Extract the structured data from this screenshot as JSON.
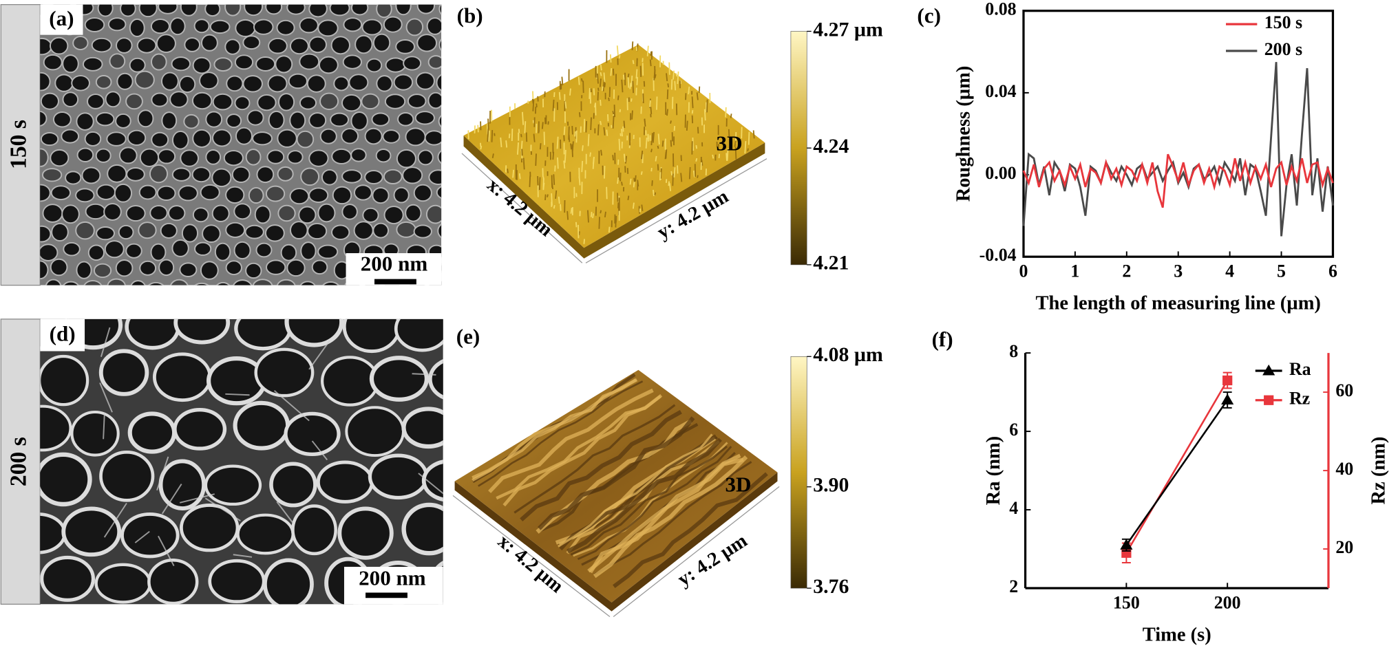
{
  "panels": [
    {
      "label": "(a)",
      "row_label": "150 s",
      "scale_bar": "200 nm"
    },
    {
      "label": "(b)",
      "x_axis": "x: 4.2 µm",
      "y_axis": "y: 4.2 µm",
      "tag": "3D",
      "zlim": [
        4.21,
        4.27
      ],
      "zticks": [
        {
          "value": 4.27,
          "label": "4.27 µm"
        },
        4.24,
        4.21
      ]
    },
    {
      "label": "(d)",
      "row_label": "200 s",
      "scale_bar": "200 nm"
    },
    {
      "label": "(e)",
      "x_axis": "x: 4.2 µm",
      "y_axis": "y: 4.2 µm",
      "tag": "3D",
      "zlim": [
        3.76,
        4.08
      ],
      "zticks": [
        {
          "value": 4.08,
          "label": "4.08 µm"
        },
        {
          "value": 3.9,
          "label": "3.90"
        },
        3.76
      ]
    }
  ],
  "chart_data": [
    {
      "type": "line",
      "panel_label": "(c)",
      "xlabel": "The length of measuring line (µm)",
      "ylabel": "Roughness (µm)",
      "xlim": [
        0,
        6
      ],
      "xticks": [
        0,
        1,
        2,
        3,
        4,
        5,
        6
      ],
      "ylim": [
        -0.04,
        0.08
      ],
      "yticks": [
        -0.04,
        {
          "value": 0,
          "label": "0.00"
        },
        0.04,
        0.08
      ],
      "legend": "upper right",
      "x": [
        0,
        0.1,
        0.2,
        0.3,
        0.4,
        0.5,
        0.6,
        0.7,
        0.8,
        0.9,
        1,
        1.1,
        1.2,
        1.3,
        1.4,
        1.5,
        1.6,
        1.7,
        1.8,
        1.9,
        2,
        2.1,
        2.2,
        2.3,
        2.4,
        2.5,
        2.6,
        2.7,
        2.8,
        2.9,
        3,
        3.1,
        3.2,
        3.3,
        3.4,
        3.5,
        3.6,
        3.7,
        3.8,
        3.9,
        4,
        4.1,
        4.2,
        4.3,
        4.4,
        4.5,
        4.6,
        4.7,
        4.8,
        4.9,
        5,
        5.1,
        5.2,
        5.3,
        5.4,
        5.5,
        5.6,
        5.7,
        5.8,
        5.9,
        6
      ],
      "series": [
        {
          "name": "150 s",
          "color": "#e8363c",
          "values": [
            0.002,
            -0.004,
            0.005,
            -0.006,
            0.003,
            0.006,
            -0.003,
            0.002,
            -0.005,
            0.004,
            -0.002,
            0.005,
            -0.006,
            0.003,
            0.001,
            -0.004,
            0.006,
            -0.002,
            0.003,
            -0.005,
            0.004,
            0.002,
            -0.003,
            0.005,
            -0.004,
            0.006,
            -0.008,
            -0.016,
            0.01,
            0.004,
            -0.003,
            0.006,
            -0.005,
            0.002,
            0.005,
            -0.004,
            0.003,
            -0.006,
            0.004,
            0.002,
            -0.005,
            0.008,
            -0.003,
            0.006,
            -0.004,
            0.004,
            -0.002,
            0.005,
            -0.006,
            0.003,
            0.006,
            -0.005,
            0.004,
            -0.003,
            0.008,
            -0.004,
            0.005,
            0.006,
            -0.005,
            0.003,
            -0.004
          ]
        },
        {
          "name": "200 s",
          "color": "#4a4a4a",
          "values": [
            -0.025,
            0.01,
            0.008,
            -0.005,
            0.004,
            -0.01,
            0.006,
            0.002,
            -0.008,
            0.005,
            0.003,
            -0.006,
            -0.02,
            0.004,
            0.002,
            -0.004,
            0.006,
            0.001,
            -0.003,
            0.004,
            0,
            -0.005,
            0.003,
            0.005,
            -0.002,
            0.001,
            0.004,
            -0.003,
            0.002,
            0.006,
            -0.004,
            0.001,
            -0.006,
            0.003,
            0.005,
            -0.002,
            0,
            0.004,
            -0.004,
            0.006,
            0.002,
            -0.003,
            0.008,
            -0.01,
            0.005,
            0.003,
            -0.008,
            -0.02,
            0.018,
            0.055,
            -0.03,
            -0.005,
            0.01,
            -0.015,
            0.02,
            0.052,
            -0.01,
            0.008,
            -0.018,
            0.004,
            -0.015
          ]
        }
      ]
    },
    {
      "type": "line",
      "panel_label": "(f)",
      "xlabel": "Time (s)",
      "ylabel": "Ra (nm)",
      "y2label": "Rz (nm)",
      "xlim": [
        100,
        250
      ],
      "xticks": [
        150,
        200
      ],
      "ylim": [
        2,
        8
      ],
      "yticks": [
        2,
        4,
        6,
        8
      ],
      "y2lim": [
        10,
        70
      ],
      "y2ticks": [
        20,
        40,
        60
      ],
      "legend": "upper right",
      "x": [
        150,
        200
      ],
      "series": [
        {
          "name": "Ra",
          "color": "#000000",
          "marker": "triangle",
          "values": [
            3.1,
            6.8
          ],
          "errors": [
            0.15,
            0.2
          ]
        },
        {
          "name": "Rz",
          "color": "#e8363c",
          "marker": "square",
          "axis": "y2",
          "values": [
            19,
            63
          ],
          "errors": [
            2.5,
            2
          ]
        }
      ]
    }
  ]
}
